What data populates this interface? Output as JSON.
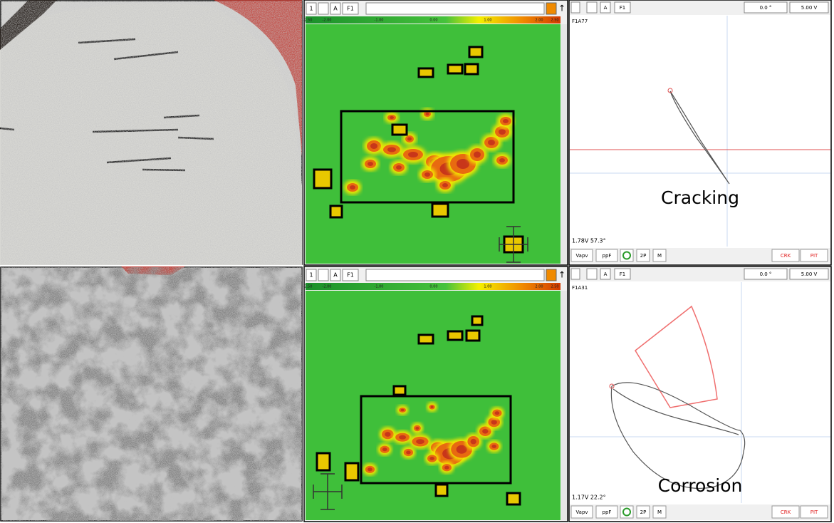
{
  "rows": [
    {
      "scan": {
        "toolbar": [
          "1",
          "A",
          "F1"
        ],
        "scale_ticks": [
          "-2.50",
          "-2.00",
          "-1.00",
          "0.00",
          "1.00",
          "2.00",
          "2.50"
        ]
      },
      "plot": {
        "toolbar": [
          "A",
          "F1",
          "0.0 °",
          "5.00 V"
        ],
        "id": "F1A77",
        "readout": "1.78V 57.3°",
        "buttons": [
          "Vapv",
          "ppF",
          "2P",
          "M"
        ],
        "alarms": [
          "CRK",
          "PIT"
        ],
        "label": "Cracking"
      }
    },
    {
      "scan": {
        "toolbar": [
          "1",
          "A",
          "F1"
        ],
        "scale_ticks": [
          "-2.50",
          "-2.00",
          "-1.00",
          "0.00",
          "1.00",
          "2.00",
          "2.50"
        ]
      },
      "plot": {
        "toolbar": [
          "A",
          "F1",
          "0.0 °",
          "5.00 V"
        ],
        "id": "F1A31",
        "readout": "1.17V 22.2°",
        "buttons": [
          "Vapv",
          "ppF",
          "2P",
          "M"
        ],
        "alarms": [
          "CRK",
          "PIT"
        ],
        "label": "Corrosion"
      }
    }
  ]
}
